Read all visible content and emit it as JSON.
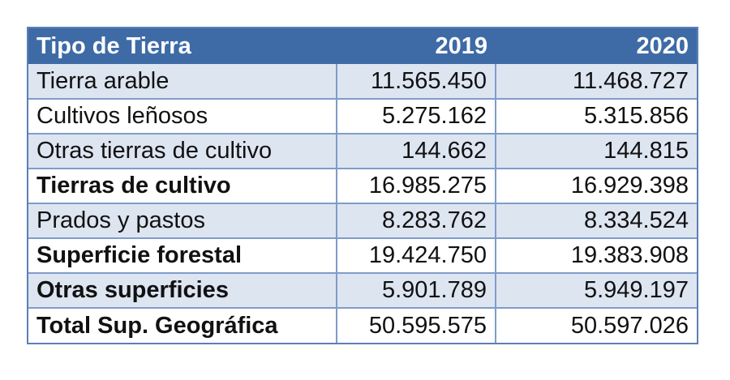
{
  "header": {
    "col1": "Tipo de Tierra",
    "col2": "2019",
    "col3": "2020"
  },
  "rows": [
    {
      "label": "Tierra arable",
      "v2019": "11.565.450",
      "v2020": "11.468.727"
    },
    {
      "label": "Cultivos leñosos",
      "v2019": "5.275.162",
      "v2020": "5.315.856"
    },
    {
      "label": "Otras tierras de cultivo",
      "v2019": "144.662",
      "v2020": "144.815"
    },
    {
      "label": "Tierras de cultivo",
      "v2019": "16.985.275",
      "v2020": "16.929.398"
    },
    {
      "label": "Prados y pastos",
      "v2019": "8.283.762",
      "v2020": "8.334.524"
    },
    {
      "label": "Superficie forestal",
      "v2019": "19.424.750",
      "v2020": "19.383.908"
    },
    {
      "label": "Otras superficies",
      "v2019": "5.901.789",
      "v2020": "5.949.197"
    },
    {
      "label": "Total Sup. Geográfica",
      "v2019": "50.595.575",
      "v2020": "50.597.026"
    }
  ],
  "colors": {
    "header_bg": "#3e6ba6",
    "row_shade": "#dde5f1",
    "grid": "#7f9cc9"
  }
}
